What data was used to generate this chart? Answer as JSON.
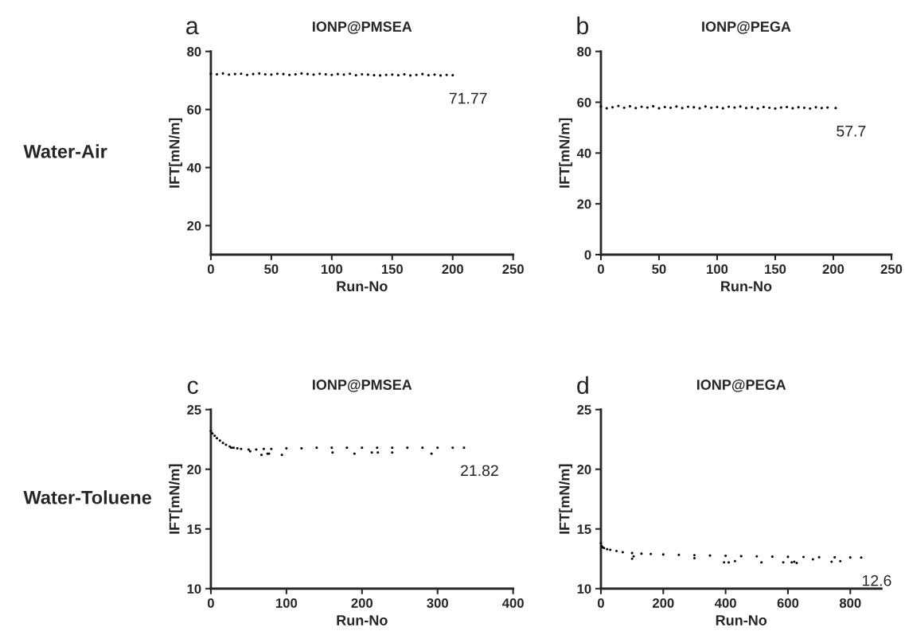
{
  "chart_data": [
    {
      "type": "scatter",
      "title": "IONP@PMSEA",
      "xlabel": "Run-No",
      "ylabel": "IFT[mN/m]",
      "xlim": [
        0,
        250
      ],
      "xticks": [
        0,
        50,
        100,
        150,
        200,
        250
      ],
      "ylim": [
        10,
        80
      ],
      "yticks": [
        20,
        40,
        60,
        80
      ],
      "marker": "circle",
      "grid": false,
      "annotations": [
        "a",
        {
          "text": "71.77",
          "x": 200,
          "y": 71.77
        },
        "Water-Air"
      ],
      "series": [
        {
          "color": "#000000",
          "x": [
            0,
            5,
            10,
            15,
            20,
            25,
            30,
            35,
            40,
            45,
            50,
            55,
            60,
            65,
            70,
            75,
            80,
            85,
            90,
            95,
            100,
            105,
            110,
            115,
            120,
            125,
            130,
            135,
            140,
            145,
            150,
            155,
            160,
            165,
            170,
            175,
            180,
            185,
            190,
            195,
            200
          ],
          "values": [
            72.3,
            72.1,
            72.4,
            72.0,
            72.2,
            72.3,
            71.9,
            72.2,
            72.4,
            72.1,
            72.0,
            72.3,
            72.2,
            71.9,
            72.1,
            72.4,
            72.2,
            72.0,
            72.3,
            72.1,
            71.9,
            72.2,
            72.0,
            72.3,
            71.8,
            72.1,
            72.0,
            71.8,
            71.7,
            71.9,
            72.0,
            71.8,
            72.1,
            71.7,
            71.9,
            72.2,
            71.8,
            72.0,
            71.7,
            71.9,
            71.8
          ]
        }
      ]
    },
    {
      "type": "scatter",
      "title": "IONP@PEGA",
      "xlabel": "Run-No",
      "ylabel": "IFT[mN/m]",
      "xlim": [
        0,
        250
      ],
      "xticks": [
        0,
        50,
        100,
        150,
        200,
        250
      ],
      "ylim": [
        0,
        80
      ],
      "yticks": [
        0,
        20,
        40,
        60,
        80
      ],
      "marker": "circle",
      "grid": false,
      "annotations": [
        "b",
        {
          "text": "57.7",
          "x": 202,
          "y": 57.7
        }
      ],
      "series": [
        {
          "color": "#000000",
          "x": [
            0,
            5,
            10,
            15,
            20,
            25,
            30,
            35,
            40,
            45,
            50,
            55,
            60,
            65,
            70,
            75,
            80,
            85,
            90,
            95,
            100,
            105,
            110,
            115,
            120,
            125,
            130,
            135,
            140,
            145,
            150,
            155,
            160,
            165,
            170,
            175,
            180,
            185,
            190,
            195,
            202
          ],
          "values": [
            58.3,
            57.6,
            58.0,
            58.5,
            57.8,
            58.4,
            57.7,
            58.2,
            57.9,
            58.4,
            57.6,
            58.1,
            57.8,
            58.3,
            57.7,
            58.2,
            58.0,
            57.6,
            58.3,
            57.8,
            58.1,
            57.6,
            58.2,
            57.9,
            58.3,
            57.7,
            58.0,
            57.5,
            58.1,
            57.8,
            57.5,
            57.9,
            58.1,
            57.6,
            58.0,
            57.8,
            57.5,
            58.0,
            57.7,
            57.9,
            57.7
          ]
        }
      ]
    },
    {
      "type": "scatter",
      "title": "IONP@PMSEA",
      "xlabel": "Run-No",
      "ylabel": "IFT[mN/m]",
      "xlim": [
        0,
        400
      ],
      "xticks": [
        0,
        100,
        200,
        300,
        400
      ],
      "ylim": [
        10,
        25
      ],
      "yticks": [
        10,
        15,
        20,
        25
      ],
      "marker": "circle",
      "grid": false,
      "annotations": [
        "c",
        {
          "text": "21.82",
          "x": 335,
          "y": 21.82
        },
        "Water-Toluene"
      ],
      "series": [
        {
          "color": "#000000",
          "x": [
            0,
            2,
            5,
            8,
            12,
            16,
            20,
            25,
            30,
            35,
            40,
            50,
            60,
            70,
            80,
            100,
            120,
            140,
            160,
            180,
            200,
            220,
            240,
            260,
            280,
            300,
            320,
            335,
            27,
            52,
            67,
            75,
            77,
            94,
            161,
            190,
            213,
            221,
            240,
            292
          ],
          "values": [
            23.2,
            23.0,
            22.8,
            22.6,
            22.4,
            22.2,
            22.05,
            21.9,
            21.8,
            21.75,
            21.7,
            21.65,
            21.65,
            21.7,
            21.7,
            21.75,
            21.75,
            21.8,
            21.8,
            21.8,
            21.8,
            21.8,
            21.8,
            21.8,
            21.8,
            21.8,
            21.8,
            21.8,
            21.8,
            21.5,
            21.2,
            21.3,
            21.3,
            21.2,
            21.4,
            21.3,
            21.4,
            21.4,
            21.4,
            21.3
          ]
        }
      ]
    },
    {
      "type": "scatter",
      "title": "IONP@PEGA",
      "xlabel": "Run-No",
      "ylabel": "IFT[mN/m]",
      "xlim": [
        0,
        900
      ],
      "xticks": [
        0,
        200,
        400,
        600,
        800
      ],
      "ylim": [
        10,
        25
      ],
      "yticks": [
        10,
        15,
        20,
        25
      ],
      "marker": "circle",
      "grid": false,
      "annotations": [
        "d",
        {
          "text": "12.6",
          "x": 835,
          "y": 12.6
        }
      ],
      "series": [
        {
          "color": "#000000",
          "x": [
            0,
            3,
            6,
            10,
            20,
            30,
            50,
            70,
            100,
            130,
            160,
            200,
            250,
            300,
            350,
            400,
            450,
            500,
            550,
            600,
            650,
            700,
            750,
            800,
            835,
            100,
            105,
            300,
            395,
            410,
            430,
            515,
            585,
            612,
            620,
            628,
            680,
            740,
            768
          ],
          "values": [
            13.8,
            13.55,
            13.45,
            13.4,
            13.3,
            13.25,
            13.15,
            13.05,
            12.98,
            12.93,
            12.9,
            12.86,
            12.83,
            12.8,
            12.77,
            12.75,
            12.72,
            12.7,
            12.68,
            12.66,
            12.65,
            12.63,
            12.62,
            12.61,
            12.6,
            12.5,
            12.7,
            12.55,
            12.2,
            12.2,
            12.3,
            12.2,
            12.2,
            12.2,
            12.25,
            12.15,
            12.45,
            12.25,
            12.3
          ]
        }
      ]
    }
  ]
}
